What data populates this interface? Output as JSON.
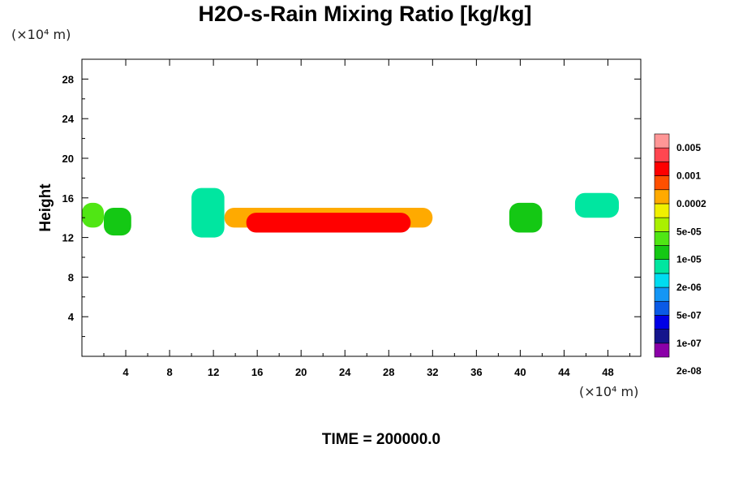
{
  "chart_data": {
    "type": "heatmap",
    "title": "H2O-s-Rain Mixing Ratio [kg/kg]",
    "xlabel": "",
    "ylabel": "Height",
    "x_unit": "(×10⁴ m)",
    "y_unit": "(×10⁴ m)",
    "xlim": [
      0,
      51
    ],
    "ylim": [
      0,
      30
    ],
    "x_ticks": [
      "4",
      "8",
      "12",
      "16",
      "20",
      "24",
      "28",
      "32",
      "36",
      "40",
      "44",
      "48"
    ],
    "y_ticks": [
      "4",
      "8",
      "12",
      "16",
      "20",
      "24",
      "28"
    ],
    "colorbar": {
      "labels": [
        "0.005",
        "0.001",
        "0.0002",
        "5e-05",
        "1e-05",
        "2e-06",
        "5e-07",
        "1e-07",
        "2e-08"
      ],
      "colors": [
        "#8b00a8",
        "#14148c",
        "#0000e6",
        "#0a5ae6",
        "#1496f5",
        "#00dcf0",
        "#00e6a0",
        "#14c814",
        "#50e614",
        "#aaf000",
        "#f0f000",
        "#ffaa00",
        "#ff5000",
        "#ff0000",
        "#ff4650",
        "#ff9696"
      ]
    },
    "cells": [
      {
        "x": [
          0.0,
          2.0
        ],
        "ylim": [
          13.0,
          15.5
        ],
        "color": "#50e614"
      },
      {
        "x": [
          2.0,
          4.5
        ],
        "ylim": [
          12.2,
          15.0
        ],
        "color": "#14c814"
      },
      {
        "x": [
          10.0,
          13.0
        ],
        "ylim": [
          12.0,
          17.0
        ],
        "color": "#00e6a0"
      },
      {
        "x": [
          13.0,
          32.0
        ],
        "ylim": [
          13.0,
          15.0
        ],
        "color": "#ffaa00"
      },
      {
        "x": [
          15.0,
          30.0
        ],
        "ylim": [
          12.5,
          14.5
        ],
        "color": "#ff0000"
      },
      {
        "x": [
          39.0,
          42.0
        ],
        "ylim": [
          12.5,
          15.5
        ],
        "color": "#14c814"
      },
      {
        "x": [
          45.0,
          49.0
        ],
        "ylim": [
          14.0,
          16.5
        ],
        "color": "#00e6a0"
      }
    ]
  },
  "time_label": "TIME = 200000.0"
}
